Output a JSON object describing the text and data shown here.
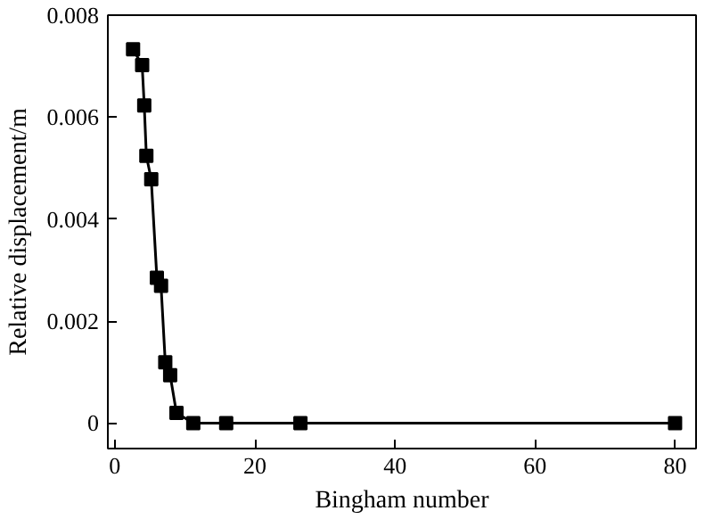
{
  "chart_data": {
    "type": "line",
    "xlabel": "Bingham number",
    "ylabel": "Relative displacement/m",
    "xlim": [
      -1,
      83
    ],
    "xticks": [
      0,
      20,
      40,
      60,
      80
    ],
    "ylim": [
      -0.0005,
      0.008
    ],
    "yticks": [
      {
        "value": 0,
        "label": "0"
      },
      0.002,
      0.004,
      0.006,
      0.008
    ],
    "grid": false,
    "marker": "square",
    "line_style": "solid",
    "series": [
      {
        "color": "#000000",
        "x": [
          2.6,
          3.9,
          4.2,
          4.5,
          5.2,
          6.0,
          6.6,
          7.2,
          7.9,
          8.8,
          11.2,
          15.9,
          26.5,
          80
        ],
        "values": [
          0.00733,
          0.00702,
          0.00623,
          0.00524,
          0.00478,
          0.00285,
          0.00269,
          0.00119,
          0.00094,
          0.0002,
          0.0,
          0.0,
          0.0,
          0.0
        ]
      }
    ]
  }
}
